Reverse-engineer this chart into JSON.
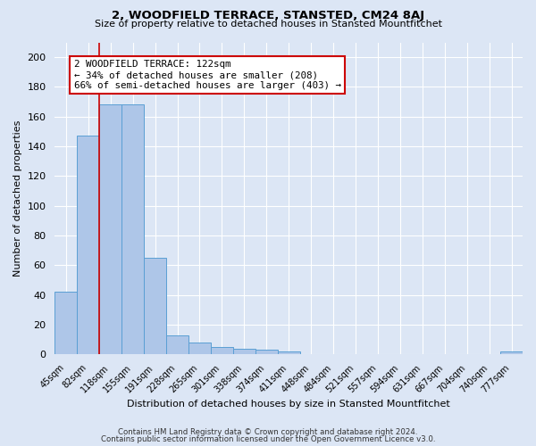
{
  "title": "2, WOODFIELD TERRACE, STANSTED, CM24 8AJ",
  "subtitle": "Size of property relative to detached houses in Stansted Mountfitchet",
  "xlabel": "Distribution of detached houses by size in Stansted Mountfitchet",
  "ylabel": "Number of detached properties",
  "bar_labels": [
    "45sqm",
    "82sqm",
    "118sqm",
    "155sqm",
    "191sqm",
    "228sqm",
    "265sqm",
    "301sqm",
    "338sqm",
    "374sqm",
    "411sqm",
    "448sqm",
    "484sqm",
    "521sqm",
    "557sqm",
    "594sqm",
    "631sqm",
    "667sqm",
    "704sqm",
    "740sqm",
    "777sqm"
  ],
  "bar_values": [
    42,
    147,
    168,
    168,
    65,
    13,
    8,
    5,
    4,
    3,
    2,
    0,
    0,
    0,
    0,
    0,
    0,
    0,
    0,
    0,
    2
  ],
  "bar_color": "#aec6e8",
  "bar_edge_color": "#5a9fd4",
  "red_line_x": 1.5,
  "annotation_text_line1": "2 WOODFIELD TERRACE: 122sqm",
  "annotation_text_line2": "← 34% of detached houses are smaller (208)",
  "annotation_text_line3": "66% of semi-detached houses are larger (403) →",
  "annotation_box_color": "#ffffff",
  "annotation_box_edge": "#cc0000",
  "red_line_color": "#cc0000",
  "ylim": [
    0,
    210
  ],
  "yticks": [
    0,
    20,
    40,
    60,
    80,
    100,
    120,
    140,
    160,
    180,
    200
  ],
  "background_color": "#dce6f5",
  "grid_color": "#ffffff",
  "footer_line1": "Contains HM Land Registry data © Crown copyright and database right 2024.",
  "footer_line2": "Contains public sector information licensed under the Open Government Licence v3.0."
}
